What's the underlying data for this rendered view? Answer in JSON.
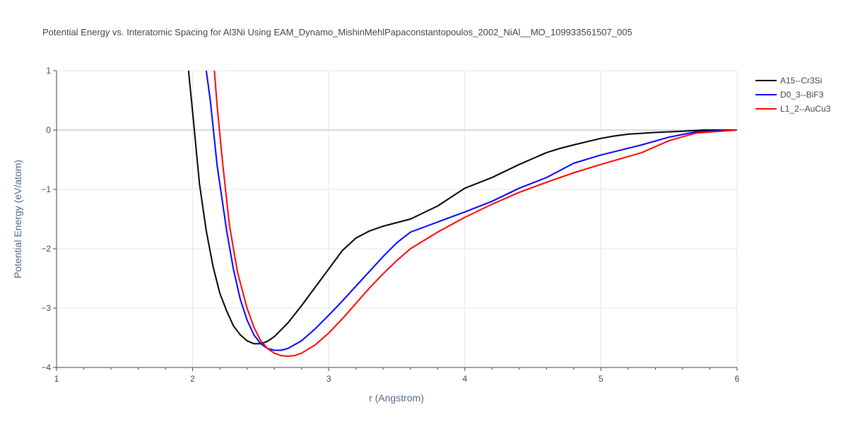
{
  "chart_data": {
    "type": "line",
    "title": "Potential Energy vs. Interatomic Spacing for Al3Ni Using EAM_Dynamo_MishinMehlPapaconstantopoulos_2002_NiAl__MO_109933561507_005",
    "xlabel": "r (Angstrom)",
    "ylabel": "Potential Energy (eV/atom)",
    "xlim": [
      1,
      6
    ],
    "ylim": [
      -4,
      1
    ],
    "xticks": [
      "1",
      "2",
      "3",
      "4",
      "5",
      "6"
    ],
    "yticks": [
      "1",
      "0",
      "−1",
      "−2",
      "−3",
      "−4"
    ],
    "grid": true,
    "legend_position": "top-right",
    "series": [
      {
        "name": "A15--Cr3Si",
        "color": "#000000",
        "x": [
          1.97,
          2.0,
          2.05,
          2.1,
          2.15,
          2.2,
          2.25,
          2.3,
          2.35,
          2.4,
          2.45,
          2.5,
          2.55,
          2.6,
          2.7,
          2.8,
          2.9,
          3.0,
          3.1,
          3.2,
          3.3,
          3.4,
          3.5,
          3.6,
          3.8,
          4.0,
          4.2,
          4.4,
          4.6,
          4.7,
          4.8,
          5.0,
          5.1,
          5.2,
          5.4,
          5.6,
          5.75,
          6.0
        ],
        "y": [
          1.0,
          0.3,
          -0.9,
          -1.7,
          -2.3,
          -2.75,
          -3.05,
          -3.3,
          -3.45,
          -3.55,
          -3.6,
          -3.6,
          -3.56,
          -3.48,
          -3.25,
          -2.96,
          -2.65,
          -2.34,
          -2.03,
          -1.82,
          -1.7,
          -1.62,
          -1.56,
          -1.5,
          -1.28,
          -0.98,
          -0.8,
          -0.58,
          -0.38,
          -0.31,
          -0.25,
          -0.14,
          -0.1,
          -0.07,
          -0.04,
          -0.02,
          0.0,
          0.0
        ]
      },
      {
        "name": "D0_3--BiF3",
        "color": "#0000ff",
        "x": [
          2.1,
          2.13,
          2.18,
          2.25,
          2.3,
          2.35,
          2.4,
          2.45,
          2.5,
          2.55,
          2.6,
          2.65,
          2.7,
          2.8,
          2.9,
          3.0,
          3.1,
          3.2,
          3.3,
          3.4,
          3.5,
          3.6,
          3.8,
          4.0,
          4.2,
          4.4,
          4.6,
          4.8,
          5.0,
          5.3,
          5.5,
          5.7,
          6.0
        ],
        "y": [
          1.0,
          0.5,
          -0.6,
          -1.7,
          -2.35,
          -2.85,
          -3.2,
          -3.45,
          -3.6,
          -3.68,
          -3.71,
          -3.71,
          -3.68,
          -3.55,
          -3.35,
          -3.12,
          -2.88,
          -2.63,
          -2.38,
          -2.13,
          -1.9,
          -1.72,
          -1.55,
          -1.38,
          -1.2,
          -0.98,
          -0.8,
          -0.56,
          -0.42,
          -0.25,
          -0.12,
          -0.03,
          0.0
        ]
      },
      {
        "name": "L1_2--AuCu3",
        "color": "#ff0000",
        "x": [
          2.16,
          2.18,
          2.22,
          2.27,
          2.33,
          2.4,
          2.45,
          2.5,
          2.55,
          2.6,
          2.65,
          2.7,
          2.75,
          2.8,
          2.9,
          3.0,
          3.1,
          3.2,
          3.3,
          3.4,
          3.5,
          3.6,
          3.8,
          4.0,
          4.2,
          4.4,
          4.6,
          4.8,
          5.0,
          5.3,
          5.5,
          5.7,
          6.0
        ],
        "y": [
          1.0,
          0.4,
          -0.55,
          -1.6,
          -2.4,
          -3.0,
          -3.32,
          -3.55,
          -3.68,
          -3.76,
          -3.8,
          -3.81,
          -3.8,
          -3.76,
          -3.62,
          -3.42,
          -3.18,
          -2.92,
          -2.66,
          -2.42,
          -2.2,
          -2.0,
          -1.72,
          -1.47,
          -1.25,
          -1.05,
          -0.88,
          -0.72,
          -0.58,
          -0.38,
          -0.18,
          -0.05,
          0.0
        ]
      }
    ]
  }
}
